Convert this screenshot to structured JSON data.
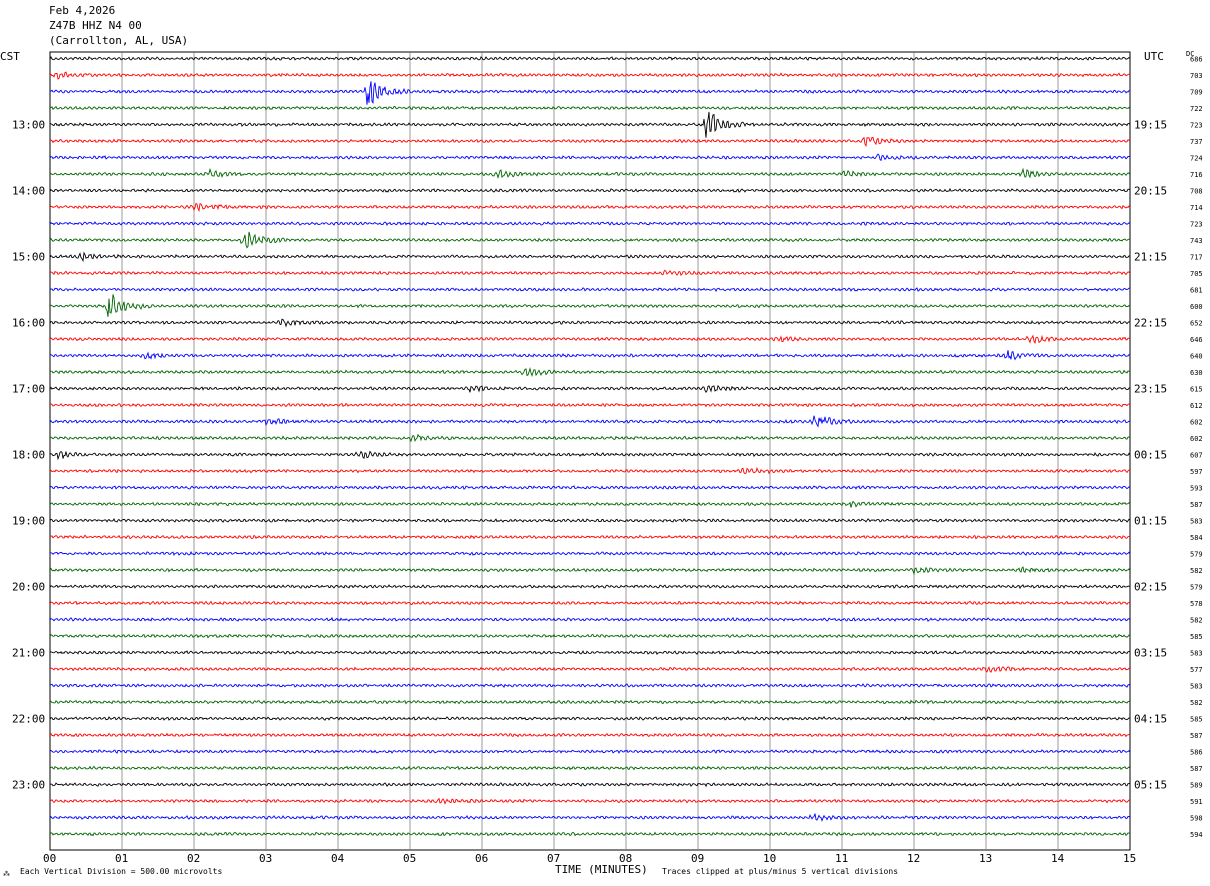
{
  "header": {
    "date": "Feb 4,2026",
    "station": "Z47B HHZ N4 00",
    "location": "(Carrollton, AL, USA)"
  },
  "left_axis_label": "CST",
  "right_axis_label": "UTC",
  "dc_label": "DC",
  "footer": {
    "x_axis_title": "TIME (MINUTES)",
    "scale_note": "Each Vertical Division =  500.00 microvolts",
    "clip_note": "Traces clipped at plus/minus 5 vertical divisions"
  },
  "colors": {
    "trace_cycle": [
      "#000000",
      "#ff0000",
      "#0000ff",
      "#006400"
    ],
    "grid": "#808080"
  },
  "chart_data": {
    "type": "helicorder",
    "x_ticks": [
      "00",
      "01",
      "02",
      "03",
      "04",
      "05",
      "06",
      "07",
      "08",
      "09",
      "10",
      "11",
      "12",
      "13",
      "14",
      "15"
    ],
    "xlim": [
      0,
      15
    ],
    "left_time_labels": [
      "13:00",
      "14:00",
      "15:00",
      "16:00",
      "17:00",
      "18:00",
      "19:00",
      "20:00",
      "21:00",
      "22:00",
      "23:00"
    ],
    "right_time_labels": [
      "19:15",
      "20:15",
      "21:15",
      "22:15",
      "23:15",
      "00:15",
      "01:15",
      "02:15",
      "03:15",
      "04:15",
      "05:15"
    ],
    "time_label_every_n_traces": 4,
    "first_labeled_trace_index": 4,
    "dc_offsets": [
      686,
      703,
      709,
      722,
      723,
      737,
      724,
      716,
      708,
      714,
      723,
      743,
      717,
      705,
      681,
      600,
      652,
      646,
      640,
      630,
      615,
      612,
      602,
      602,
      607,
      597,
      593,
      587,
      583,
      584,
      579,
      582,
      579,
      578,
      582,
      585,
      583,
      577,
      583,
      582,
      585,
      587,
      586,
      587,
      589,
      591,
      598,
      594
    ],
    "events": [
      {
        "trace": 1,
        "minute": 0.1,
        "amplitude": 1.0
      },
      {
        "trace": 2,
        "minute": 4.4,
        "amplitude": 5.0
      },
      {
        "trace": 4,
        "minute": 9.1,
        "amplitude": 5.0
      },
      {
        "trace": 5,
        "minute": 11.3,
        "amplitude": 1.5
      },
      {
        "trace": 6,
        "minute": 11.5,
        "amplitude": 0.8
      },
      {
        "trace": 7,
        "minute": 2.2,
        "amplitude": 1.2
      },
      {
        "trace": 7,
        "minute": 6.2,
        "amplitude": 1.2
      },
      {
        "trace": 7,
        "minute": 11.0,
        "amplitude": 1.2
      },
      {
        "trace": 7,
        "minute": 13.5,
        "amplitude": 1.2
      },
      {
        "trace": 9,
        "minute": 2.0,
        "amplitude": 1.5
      },
      {
        "trace": 11,
        "minute": 2.7,
        "amplitude": 3.0
      },
      {
        "trace": 12,
        "minute": 0.4,
        "amplitude": 1.3
      },
      {
        "trace": 13,
        "minute": 8.5,
        "amplitude": 0.8
      },
      {
        "trace": 15,
        "minute": 0.8,
        "amplitude": 5.0
      },
      {
        "trace": 16,
        "minute": 3.2,
        "amplitude": 1.4
      },
      {
        "trace": 17,
        "minute": 10.1,
        "amplitude": 1.0
      },
      {
        "trace": 17,
        "minute": 13.6,
        "amplitude": 1.4
      },
      {
        "trace": 18,
        "minute": 1.3,
        "amplitude": 1.0
      },
      {
        "trace": 18,
        "minute": 13.3,
        "amplitude": 1.5
      },
      {
        "trace": 19,
        "minute": 6.6,
        "amplitude": 1.5
      },
      {
        "trace": 20,
        "minute": 5.8,
        "amplitude": 1.0
      },
      {
        "trace": 20,
        "minute": 9.1,
        "amplitude": 1.3
      },
      {
        "trace": 22,
        "minute": 3.0,
        "amplitude": 1.2
      },
      {
        "trace": 22,
        "minute": 10.6,
        "amplitude": 2.5
      },
      {
        "trace": 23,
        "minute": 5.0,
        "amplitude": 1.0
      },
      {
        "trace": 24,
        "minute": 0.1,
        "amplitude": 1.2
      },
      {
        "trace": 24,
        "minute": 4.3,
        "amplitude": 1.2
      },
      {
        "trace": 25,
        "minute": 9.6,
        "amplitude": 1.3
      },
      {
        "trace": 27,
        "minute": 11.1,
        "amplitude": 1.0
      },
      {
        "trace": 31,
        "minute": 12.0,
        "amplitude": 0.8
      },
      {
        "trace": 31,
        "minute": 13.5,
        "amplitude": 0.8
      },
      {
        "trace": 37,
        "minute": 13.0,
        "amplitude": 1.0
      },
      {
        "trace": 45,
        "minute": 5.4,
        "amplitude": 0.8
      },
      {
        "trace": 46,
        "minute": 10.6,
        "amplitude": 1.0
      }
    ]
  }
}
